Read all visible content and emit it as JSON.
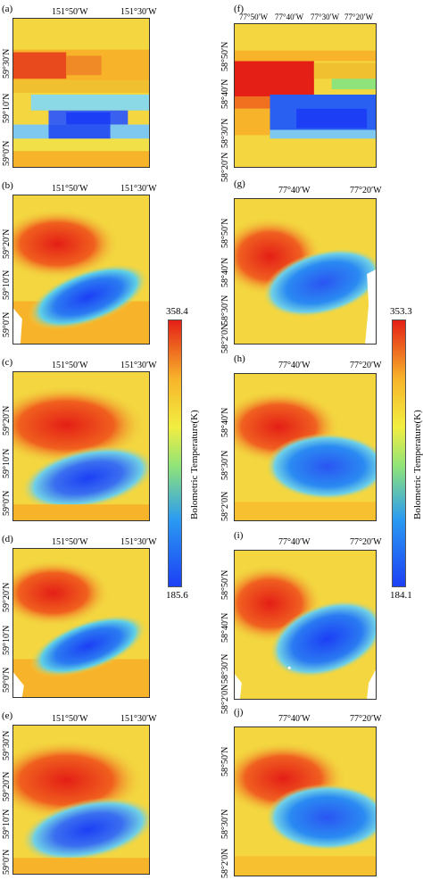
{
  "left_column": {
    "panels": [
      {
        "label": "(a)",
        "lon": [
          "151°50′W",
          "151°30′W"
        ],
        "lat": [
          "59°30′N",
          "59°10′N",
          "59°0′N"
        ]
      },
      {
        "label": "(b)",
        "lon": [
          "151°50′W",
          "151°30′W"
        ],
        "lat": [
          "59°20′N",
          "59°10′N",
          "59°0′N"
        ]
      },
      {
        "label": "(c)",
        "lon": [
          "151°50′W",
          "151°30′W"
        ],
        "lat": [
          "59°20′N",
          "59°10′N",
          "59°0′N"
        ]
      },
      {
        "label": "(d)",
        "lon": [
          "151°50′W",
          "151°30′W"
        ],
        "lat": [
          "59°20′N",
          "59°10′N",
          "59°0′N"
        ]
      },
      {
        "label": "(e)",
        "lon": [
          "151°50′W",
          "151°30′W"
        ],
        "lat": [
          "59°30′N",
          "59°20′N",
          "59°10′N",
          "59°0′N"
        ]
      }
    ],
    "colorbar": {
      "max": "358.4",
      "min": "185.6",
      "title": "Bolometric Temperature(K)"
    }
  },
  "right_column": {
    "panels": [
      {
        "label": "(f)",
        "lon": [
          "77°50′W",
          "77°40′W",
          "77°30′W",
          "77°20′W"
        ],
        "lat": [
          "58°50′N",
          "58°40′N",
          "58°30′N",
          "58°20′N"
        ]
      },
      {
        "label": "(g)",
        "lon": [
          "77°40′W",
          "77°20′W"
        ],
        "lat": [
          "58°50′N",
          "58°40′N",
          "58°30′N",
          "58°2′0N"
        ]
      },
      {
        "label": "(h)",
        "lon": [
          "77°40′W",
          "77°20′W"
        ],
        "lat": [
          "58°40′N",
          "58°30′N",
          "58°2′0N"
        ]
      },
      {
        "label": "(i)",
        "lon": [
          "77°40′W",
          "77°20′W"
        ],
        "lat": [
          "58°50′N",
          "58°40′N",
          "58°30′N",
          "58°2′0N"
        ]
      },
      {
        "label": "(j)",
        "lon": [
          "77°40′W",
          "77°20′W"
        ],
        "lat": [
          "58°50′N",
          "58°30′N",
          "58°2′0N"
        ]
      }
    ],
    "colorbar": {
      "max": "353.3",
      "min": "184.1",
      "title": "Bolometric Temperature(K)"
    }
  },
  "colors": {
    "hot": "#e41f16",
    "warm": "#f7b42a",
    "mid": "#f3d640",
    "cold": "#1c3ff5",
    "cool": "#2a9af2"
  }
}
